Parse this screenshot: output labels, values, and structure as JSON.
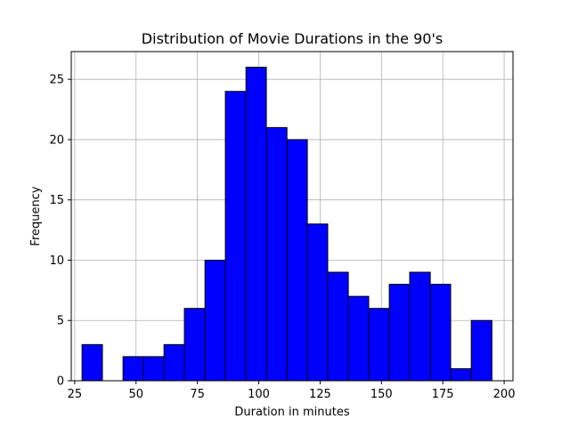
{
  "chart_data": {
    "type": "bar",
    "title": "Distribution of Movie Durations in the 90's",
    "xlabel": "Duration in minutes",
    "ylabel": "Frequency",
    "xlim": [
      23.6,
      203.6
    ],
    "ylim": [
      0,
      27.3
    ],
    "xticks": [
      25,
      50,
      75,
      100,
      125,
      150,
      175,
      200
    ],
    "yticks": [
      0,
      5,
      10,
      15,
      20,
      25
    ],
    "grid": true,
    "bar_color": "#0000ff",
    "edge_color": "#000000",
    "bins": [
      {
        "x0": 28.0,
        "x1": 36.3,
        "count": 3
      },
      {
        "x0": 36.3,
        "x1": 44.7,
        "count": 0
      },
      {
        "x0": 44.7,
        "x1": 53.0,
        "count": 2
      },
      {
        "x0": 53.0,
        "x1": 61.4,
        "count": 2
      },
      {
        "x0": 61.4,
        "x1": 69.7,
        "count": 3
      },
      {
        "x0": 69.7,
        "x1": 78.1,
        "count": 6
      },
      {
        "x0": 78.1,
        "x1": 86.4,
        "count": 10
      },
      {
        "x0": 86.4,
        "x1": 94.8,
        "count": 24
      },
      {
        "x0": 94.8,
        "x1": 103.1,
        "count": 26
      },
      {
        "x0": 103.1,
        "x1": 111.5,
        "count": 21
      },
      {
        "x0": 111.5,
        "x1": 119.8,
        "count": 20
      },
      {
        "x0": 119.8,
        "x1": 128.1,
        "count": 13
      },
      {
        "x0": 128.1,
        "x1": 136.5,
        "count": 9
      },
      {
        "x0": 136.5,
        "x1": 144.8,
        "count": 7
      },
      {
        "x0": 144.8,
        "x1": 153.2,
        "count": 6
      },
      {
        "x0": 153.2,
        "x1": 161.5,
        "count": 8
      },
      {
        "x0": 161.5,
        "x1": 169.9,
        "count": 9
      },
      {
        "x0": 169.9,
        "x1": 178.2,
        "count": 8
      },
      {
        "x0": 178.2,
        "x1": 186.6,
        "count": 1
      },
      {
        "x0": 186.6,
        "x1": 195.0,
        "count": 5
      }
    ]
  }
}
